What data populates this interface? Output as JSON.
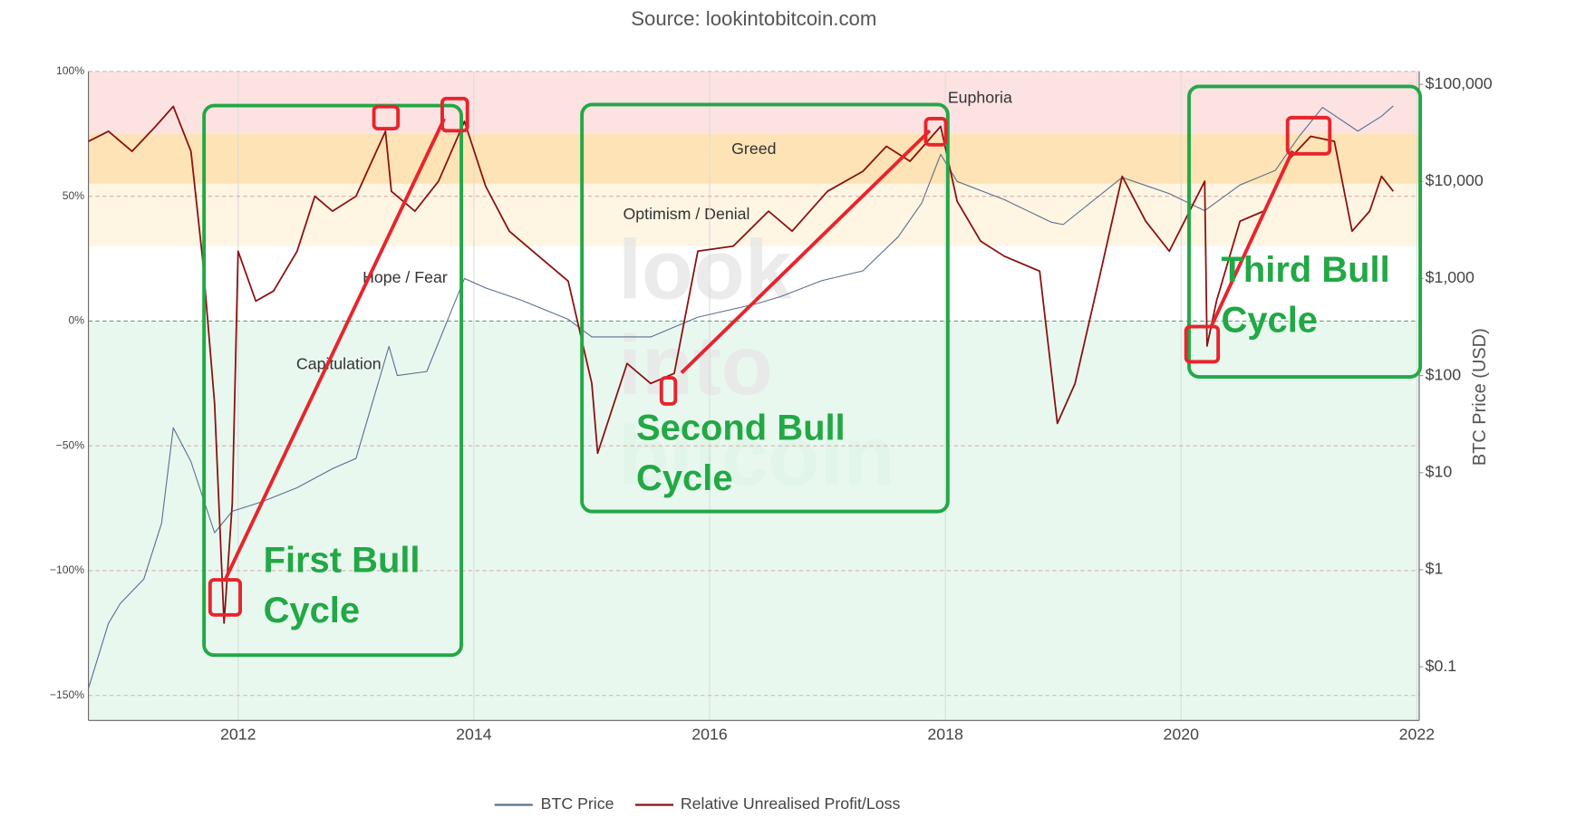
{
  "chart_data": {
    "type": "line",
    "title": "Source: lookintobitcoin.com",
    "watermark": [
      "look",
      "into",
      "bitcoin"
    ],
    "y2_label": "BTC Price (USD)",
    "xlim": [
      2010.73,
      2022.02
    ],
    "xticks": [
      2012,
      2014,
      2016,
      2018,
      2020,
      2022
    ],
    "ylim": [
      -160,
      100
    ],
    "yticks": [
      {
        "value": 100,
        "label": "100%"
      },
      {
        "value": 50,
        "label": "50%"
      },
      {
        "value": 0,
        "label": "0%"
      },
      {
        "value": -50,
        "label": "−50%"
      },
      {
        "value": -100,
        "label": "−100%"
      },
      {
        "value": -150,
        "label": "−150%"
      }
    ],
    "y2_log": true,
    "y2lim": [
      0.028,
      136000
    ],
    "y2ticks": [
      {
        "value": 100000,
        "label": "$100,000"
      },
      {
        "value": 10000,
        "label": "$10,000"
      },
      {
        "value": 1000,
        "label": "$1,000"
      },
      {
        "value": 100,
        "label": "$100"
      },
      {
        "value": 10,
        "label": "$10"
      },
      {
        "value": 1,
        "label": "$1"
      },
      {
        "value": 0.1,
        "label": "$0.1"
      }
    ],
    "grid": true,
    "zones": [
      {
        "name": "Euphoria",
        "from": 75,
        "color": "#fde2e2"
      },
      {
        "name": "Greed",
        "from": 55,
        "color": "#fde3b5"
      },
      {
        "name": "Optimism / Denial",
        "from": 30,
        "color": "#fef5e3"
      },
      {
        "name": "Hope / Fear",
        "from": 0,
        "color": "#ffffff"
      },
      {
        "name": "Capitulation",
        "color": "#e8f8ef"
      }
    ],
    "series": [
      {
        "name": "BTC Price",
        "color": "#5b6f8f",
        "axis": "y2",
        "x": [
          2010.73,
          2010.9,
          2011.0,
          2011.2,
          2011.35,
          2011.45,
          2011.6,
          2011.8,
          2011.95,
          2012.2,
          2012.5,
          2012.8,
          2013.0,
          2013.28,
          2013.35,
          2013.6,
          2013.92,
          2014.1,
          2014.4,
          2014.8,
          2015.0,
          2015.5,
          2015.9,
          2016.4,
          2016.6,
          2016.95,
          2017.3,
          2017.6,
          2017.8,
          2017.96,
          2018.1,
          2018.5,
          2018.9,
          2019.0,
          2019.5,
          2019.9,
          2020.2,
          2020.5,
          2020.8,
          2021.0,
          2021.2,
          2021.5,
          2021.7,
          2021.8
        ],
        "values": [
          0.06,
          0.28,
          0.45,
          0.8,
          3,
          29,
          13,
          2.4,
          4,
          5,
          7,
          11,
          14,
          200,
          100,
          110,
          1000,
          800,
          600,
          380,
          250,
          250,
          400,
          550,
          650,
          950,
          1200,
          2700,
          6000,
          19000,
          10000,
          6500,
          3800,
          3600,
          11000,
          7500,
          5000,
          9200,
          13000,
          29000,
          58000,
          33000,
          47000,
          60000
        ]
      },
      {
        "name": "Relative Unrealised Profit/Loss",
        "color": "#8b1010",
        "axis": "y",
        "x": [
          2010.73,
          2010.9,
          2011.1,
          2011.3,
          2011.45,
          2011.6,
          2011.7,
          2011.8,
          2011.88,
          2011.95,
          2012.0,
          2012.15,
          2012.3,
          2012.5,
          2012.65,
          2012.8,
          2013.0,
          2013.25,
          2013.3,
          2013.5,
          2013.7,
          2013.92,
          2014.1,
          2014.3,
          2014.5,
          2014.8,
          2015.0,
          2015.05,
          2015.3,
          2015.5,
          2015.7,
          2015.9,
          2016.2,
          2016.5,
          2016.7,
          2017.0,
          2017.3,
          2017.5,
          2017.7,
          2017.96,
          2018.1,
          2018.3,
          2018.5,
          2018.8,
          2018.95,
          2019.1,
          2019.3,
          2019.5,
          2019.7,
          2019.9,
          2020.2,
          2020.22,
          2020.3,
          2020.5,
          2020.7,
          2020.9,
          2021.1,
          2021.3,
          2021.45,
          2021.6,
          2021.7,
          2021.8
        ],
        "values": [
          72,
          76,
          68,
          78,
          86,
          68,
          24,
          -33,
          -121,
          -73,
          28,
          8,
          12,
          28,
          50,
          44,
          50,
          76,
          52,
          44,
          56,
          80,
          54,
          36,
          28,
          16,
          -25,
          -53,
          -17,
          -25,
          -21,
          28,
          30,
          44,
          36,
          52,
          60,
          70,
          64,
          78,
          48,
          32,
          26,
          20,
          -41,
          -25,
          16,
          58,
          40,
          28,
          56,
          -10,
          8,
          40,
          44,
          64,
          74,
          72,
          36,
          44,
          58,
          52
        ]
      }
    ],
    "annotations": [
      {
        "lines": [
          "First Bull",
          "Cycle"
        ]
      },
      {
        "lines": [
          "Second Bull",
          "Cycle"
        ]
      },
      {
        "lines": [
          "Third Bull",
          "Cycle"
        ]
      }
    ]
  }
}
